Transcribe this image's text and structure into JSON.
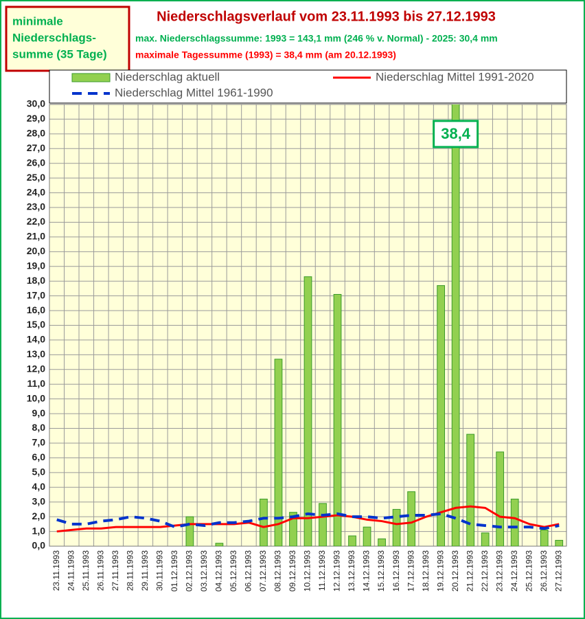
{
  "chart_data": {
    "type": "bar",
    "title": "Niederschlagsverlauf vom 23.11.1993 bis 27.12.1993",
    "subtitles": [
      "max. Niederschlagssumme: 1993 = 143,1 mm (246 % v. Normal) - 2025: 30,4 mm",
      "maximale Tagessumme (1993) = 38,4 mm (am 20.12.1993)"
    ],
    "info_box": [
      "minimale",
      "Niederschlags-",
      "summe (35 Tage)"
    ],
    "categories": [
      "23.11.1993",
      "24.11.1993",
      "25.11.1993",
      "26.11.1993",
      "27.11.1993",
      "28.11.1993",
      "29.11.1993",
      "30.11.1993",
      "01.12.1993",
      "02.12.1993",
      "03.12.1993",
      "04.12.1993",
      "05.12.1993",
      "06.12.1993",
      "07.12.1993",
      "08.12.1993",
      "09.12.1993",
      "10.12.1993",
      "11.12.1993",
      "12.12.1993",
      "13.12.1993",
      "14.12.1993",
      "15.12.1993",
      "16.12.1993",
      "17.12.1993",
      "18.12.1993",
      "19.12.1993",
      "20.12.1993",
      "21.12.1993",
      "22.12.1993",
      "23.12.1993",
      "24.12.1993",
      "25.12.1993",
      "26.12.1993",
      "27.12.1993"
    ],
    "series": [
      {
        "name": "Niederschlag aktuell",
        "type": "bar",
        "color": "#92d050",
        "values": [
          0,
          0,
          0,
          0,
          0,
          0,
          0,
          0,
          0,
          2.0,
          0,
          0.2,
          0,
          0,
          3.2,
          12.7,
          2.3,
          18.3,
          2.9,
          17.1,
          0.7,
          1.3,
          0.5,
          2.5,
          3.7,
          0,
          17.7,
          38.4,
          7.6,
          0.9,
          6.4,
          3.2,
          0,
          1.1,
          0.4
        ],
        "value_labels": [
          null,
          null,
          null,
          null,
          null,
          null,
          null,
          null,
          null,
          null,
          null,
          null,
          null,
          null,
          null,
          null,
          null,
          null,
          null,
          null,
          null,
          null,
          null,
          null,
          null,
          null,
          null,
          "38,4",
          null,
          null,
          null,
          null,
          null,
          null,
          null
        ]
      },
      {
        "name": "Niederschlag Mittel 1991-2020",
        "type": "line",
        "color": "#ff0000",
        "dashed": false,
        "values": [
          1.0,
          1.1,
          1.2,
          1.2,
          1.3,
          1.3,
          1.3,
          1.3,
          1.4,
          1.5,
          1.5,
          1.5,
          1.5,
          1.6,
          1.3,
          1.5,
          1.9,
          1.9,
          2.0,
          2.1,
          2.0,
          1.8,
          1.7,
          1.5,
          1.6,
          2.0,
          2.3,
          2.6,
          2.7,
          2.6,
          2.0,
          1.9,
          1.5,
          1.3,
          1.5
        ]
      },
      {
        "name": "Niederschlag Mittel 1961-1990",
        "type": "line",
        "color": "#0033cc",
        "dashed": true,
        "values": [
          1.8,
          1.5,
          1.5,
          1.7,
          1.8,
          2.0,
          1.9,
          1.7,
          1.3,
          1.5,
          1.4,
          1.6,
          1.6,
          1.7,
          1.9,
          1.9,
          2.0,
          2.2,
          2.1,
          2.2,
          2.0,
          2.0,
          1.9,
          2.0,
          2.1,
          2.1,
          2.2,
          1.9,
          1.5,
          1.4,
          1.3,
          1.3,
          1.3,
          1.2,
          1.4
        ]
      }
    ],
    "ylim": [
      0,
      30
    ],
    "yticks": [
      {
        "value": 0,
        "label": "0,0"
      },
      {
        "value": 1,
        "label": "1,0"
      },
      {
        "value": 2,
        "label": "2,0"
      },
      {
        "value": 3,
        "label": "3,0"
      },
      {
        "value": 4,
        "label": "4,0"
      },
      {
        "value": 5,
        "label": "5,0"
      },
      {
        "value": 6,
        "label": "6,0"
      },
      {
        "value": 7,
        "label": "7,0"
      },
      {
        "value": 8,
        "label": "8,0"
      },
      {
        "value": 9,
        "label": "9,0"
      },
      {
        "value": 10,
        "label": "10,0"
      },
      {
        "value": 11,
        "label": "11,0"
      },
      {
        "value": 12,
        "label": "12,0"
      },
      {
        "value": 13,
        "label": "13,0"
      },
      {
        "value": 14,
        "label": "14,0"
      },
      {
        "value": 15,
        "label": "15,0"
      },
      {
        "value": 16,
        "label": "16,0"
      },
      {
        "value": 17,
        "label": "17,0"
      },
      {
        "value": 18,
        "label": "18,0"
      },
      {
        "value": 19,
        "label": "19,0"
      },
      {
        "value": 20,
        "label": "20,0"
      },
      {
        "value": 21,
        "label": "21,0"
      },
      {
        "value": 22,
        "label": "22,0"
      },
      {
        "value": 23,
        "label": "23,0"
      },
      {
        "value": 24,
        "label": "24,0"
      },
      {
        "value": 25,
        "label": "25,0"
      },
      {
        "value": 26,
        "label": "26,0"
      },
      {
        "value": 27,
        "label": "27,0"
      },
      {
        "value": 28,
        "label": "28,0"
      },
      {
        "value": 29,
        "label": "29,0"
      },
      {
        "value": 30,
        "label": "30,0"
      }
    ],
    "grid": true
  }
}
